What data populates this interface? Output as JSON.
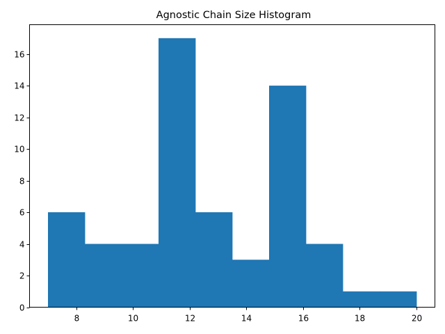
{
  "chart_data": {
    "type": "bar",
    "title": "Agnostic Chain Size Histogram",
    "xlabel": "",
    "ylabel": "",
    "bin_edges": [
      7.0,
      8.3,
      9.6,
      10.9,
      12.2,
      13.5,
      14.8,
      16.1,
      17.4,
      18.7,
      20.0
    ],
    "values": [
      6,
      4,
      4,
      17,
      6,
      3,
      14,
      4,
      1,
      1
    ],
    "xlim": [
      6.35,
      20.65
    ],
    "ylim": [
      0,
      17.85
    ],
    "x_ticks": [
      8,
      10,
      12,
      14,
      16,
      18,
      20
    ],
    "y_ticks": [
      0,
      2,
      4,
      6,
      8,
      10,
      12,
      14,
      16
    ],
    "bar_color": "#1f77b4",
    "grid": false,
    "legend": "none"
  }
}
